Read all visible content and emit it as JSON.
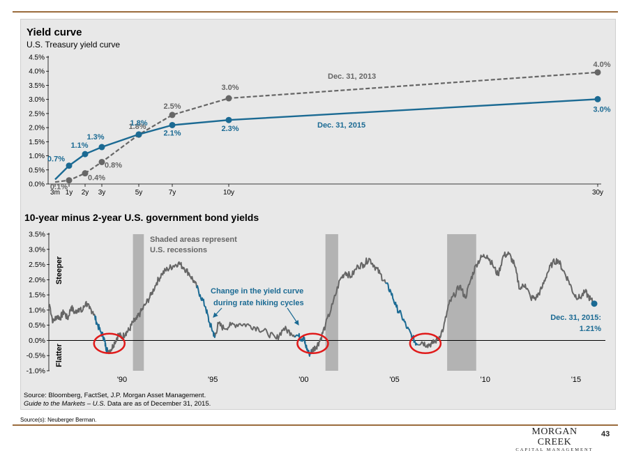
{
  "chart_data": [
    {
      "type": "line",
      "title": "Yield curve",
      "subtitle": "U.S. Treasury yield curve",
      "x_tick_labels": [
        "3m",
        "1y",
        "2y",
        "3y",
        "5y",
        "7y",
        "10y",
        "30y"
      ],
      "x_maturity_years": [
        0.25,
        1,
        2,
        3,
        5,
        7,
        10,
        30
      ],
      "ylim": [
        0,
        4.5
      ],
      "y_tick_labels": [
        "0.0%",
        "0.5%",
        "1.0%",
        "1.5%",
        "2.0%",
        "2.5%",
        "3.0%",
        "3.5%",
        "4.0%",
        "4.5%"
      ],
      "series": [
        {
          "name": "Dec. 31, 2013",
          "color": "#666666",
          "style": "dashed",
          "values": [
            0.07,
            0.13,
            0.38,
            0.78,
            1.75,
            2.45,
            3.04,
            3.96
          ],
          "point_labels": [
            {
              "x": 1,
              "text": "0.1%"
            },
            {
              "x": 2,
              "text": "0.4%"
            },
            {
              "x": 3,
              "text": "0.8%"
            },
            {
              "x": 5,
              "text": "1.8%"
            },
            {
              "x": 7,
              "text": "2.5%"
            },
            {
              "x": 10,
              "text": "3.0%"
            },
            {
              "x": 30,
              "text": "4.0%"
            }
          ]
        },
        {
          "name": "Dec. 31, 2015",
          "color": "#1b6a93",
          "style": "solid",
          "values": [
            0.16,
            0.65,
            1.06,
            1.31,
            1.76,
            2.09,
            2.27,
            3.01
          ],
          "point_labels": [
            {
              "x": 1,
              "text": "0.7%"
            },
            {
              "x": 2,
              "text": "1.1%"
            },
            {
              "x": 3,
              "text": "1.3%"
            },
            {
              "x": 5,
              "text": "1.8%"
            },
            {
              "x": 7,
              "text": "2.1%"
            },
            {
              "x": 10,
              "text": "2.3%"
            },
            {
              "x": 30,
              "text": "3.0%"
            }
          ]
        }
      ]
    },
    {
      "type": "line",
      "title": "10-year minus 2-year U.S. government bond yields",
      "ylim": [
        -1.0,
        3.5
      ],
      "y_tick_labels": [
        "-1.0%",
        "-0.5%",
        "0.0%",
        "0.5%",
        "1.0%",
        "1.5%",
        "2.0%",
        "2.5%",
        "3.0%",
        "3.5%"
      ],
      "xlim": [
        1986,
        2016.5
      ],
      "x_ticks": [
        1990,
        1995,
        2000,
        2005,
        2010,
        2015
      ],
      "x_tick_labels": [
        "'90",
        "'95",
        "'00",
        "'05",
        "'10",
        "'15"
      ],
      "axis_side_labels": {
        "top": "Steeper",
        "bottom": "Flatter"
      },
      "recessions": [
        [
          1990.6,
          1991.2
        ],
        [
          2001.2,
          2001.9
        ],
        [
          2007.9,
          2009.5
        ]
      ],
      "series": {
        "name": "10-year minus 2-year spread",
        "color": "#666666",
        "hiking_color": "#1b6a93",
        "points": [
          [
            1986.0,
            1.2
          ],
          [
            1986.2,
            0.6
          ],
          [
            1986.4,
            0.8
          ],
          [
            1986.6,
            0.75
          ],
          [
            1986.8,
            0.95
          ],
          [
            1987.0,
            0.7
          ],
          [
            1987.2,
            1.1
          ],
          [
            1987.4,
            0.9
          ],
          [
            1987.6,
            1.05
          ],
          [
            1987.8,
            0.95
          ],
          [
            1988.0,
            1.25
          ],
          [
            1988.2,
            1.05
          ],
          [
            1988.4,
            0.95
          ],
          [
            1988.6,
            0.6
          ],
          [
            1988.8,
            0.3
          ],
          [
            1989.0,
            0.1
          ],
          [
            1989.1,
            -0.2
          ],
          [
            1989.2,
            -0.35
          ],
          [
            1989.4,
            -0.3
          ],
          [
            1989.6,
            -0.05
          ],
          [
            1989.8,
            0.2
          ],
          [
            1990.0,
            0.1
          ],
          [
            1990.2,
            0.25
          ],
          [
            1990.4,
            0.35
          ],
          [
            1990.6,
            0.6
          ],
          [
            1990.8,
            0.7
          ],
          [
            1991.0,
            0.9
          ],
          [
            1991.3,
            1.2
          ],
          [
            1991.6,
            1.5
          ],
          [
            1991.9,
            1.9
          ],
          [
            1992.2,
            2.2
          ],
          [
            1992.5,
            2.35
          ],
          [
            1992.8,
            2.45
          ],
          [
            1993.1,
            2.55
          ],
          [
            1993.4,
            2.4
          ],
          [
            1993.7,
            2.2
          ],
          [
            1994.0,
            1.9
          ],
          [
            1994.3,
            1.5
          ],
          [
            1994.6,
            1.1
          ],
          [
            1994.8,
            0.6
          ],
          [
            1995.0,
            0.3
          ],
          [
            1995.1,
            0.1
          ],
          [
            1995.3,
            0.55
          ],
          [
            1995.6,
            0.4
          ],
          [
            1996.0,
            0.5
          ],
          [
            1996.5,
            0.55
          ],
          [
            1997.0,
            0.5
          ],
          [
            1997.5,
            0.4
          ],
          [
            1998.0,
            0.25
          ],
          [
            1998.5,
            0.05
          ],
          [
            1998.9,
            0.4
          ],
          [
            1999.3,
            0.25
          ],
          [
            1999.7,
            0.15
          ],
          [
            1999.9,
            0.05
          ],
          [
            2000.0,
            0.1
          ],
          [
            2000.1,
            -0.15
          ],
          [
            2000.3,
            -0.45
          ],
          [
            2000.5,
            -0.3
          ],
          [
            2000.7,
            -0.2
          ],
          [
            2000.9,
            0.0
          ],
          [
            2001.2,
            0.5
          ],
          [
            2001.6,
            1.2
          ],
          [
            2002.0,
            2.0
          ],
          [
            2002.3,
            2.25
          ],
          [
            2002.6,
            2.1
          ],
          [
            2003.0,
            2.45
          ],
          [
            2003.3,
            2.5
          ],
          [
            2003.6,
            2.7
          ],
          [
            2003.9,
            2.45
          ],
          [
            2004.2,
            2.2
          ],
          [
            2004.5,
            1.9
          ],
          [
            2004.8,
            1.6
          ],
          [
            2005.1,
            1.1
          ],
          [
            2005.4,
            0.8
          ],
          [
            2005.7,
            0.4
          ],
          [
            2006.0,
            0.1
          ],
          [
            2006.2,
            -0.1
          ],
          [
            2006.5,
            -0.05
          ],
          [
            2006.8,
            -0.15
          ],
          [
            2007.1,
            -0.1
          ],
          [
            2007.4,
            0.05
          ],
          [
            2007.7,
            0.4
          ],
          [
            2008.0,
            1.2
          ],
          [
            2008.3,
            1.5
          ],
          [
            2008.6,
            1.8
          ],
          [
            2008.9,
            1.4
          ],
          [
            2009.2,
            2.0
          ],
          [
            2009.5,
            2.5
          ],
          [
            2009.8,
            2.75
          ],
          [
            2010.1,
            2.8
          ],
          [
            2010.4,
            2.5
          ],
          [
            2010.7,
            2.15
          ],
          [
            2011.0,
            2.8
          ],
          [
            2011.3,
            2.85
          ],
          [
            2011.6,
            2.5
          ],
          [
            2011.9,
            1.7
          ],
          [
            2012.2,
            1.85
          ],
          [
            2012.5,
            1.4
          ],
          [
            2012.8,
            1.4
          ],
          [
            2013.1,
            1.7
          ],
          [
            2013.4,
            2.2
          ],
          [
            2013.7,
            2.55
          ],
          [
            2014.0,
            2.65
          ],
          [
            2014.3,
            2.3
          ],
          [
            2014.6,
            1.95
          ],
          [
            2014.9,
            1.5
          ],
          [
            2015.2,
            1.4
          ],
          [
            2015.5,
            1.6
          ],
          [
            2015.8,
            1.35
          ],
          [
            2016.0,
            1.21
          ]
        ],
        "hiking_cycles": [
          [
            1988.5,
            1989.2
          ],
          [
            1994.1,
            1995.1
          ],
          [
            1999.5,
            2000.4
          ],
          [
            2004.5,
            2006.3
          ]
        ],
        "end_point": {
          "x": 2016.0,
          "y": 1.21
        }
      },
      "annotations": [
        {
          "text": "Shaded areas represent",
          "text2": "U.S. recessions"
        },
        {
          "text": "Change in the yield curve",
          "text2": "during rate hiking cycles"
        },
        {
          "text": "Dec. 31, 2015:",
          "text2": "1.21%"
        }
      ],
      "circled_inversions": [
        1989.3,
        2000.5,
        2006.7
      ]
    }
  ],
  "chart1": {
    "title": "Yield curve",
    "subtitle": "U.S. Treasury yield curve",
    "series_label_2013": "Dec. 31, 2013",
    "series_label_2015": "Dec. 31, 2015"
  },
  "chart2": {
    "title": "10-year minus 2-year U.S. government bond yields",
    "steeper": "Steeper",
    "flatter": "Flatter",
    "recession_note_1": "Shaded areas represent",
    "recession_note_2": "U.S. recessions",
    "hiking_note_1": "Change in the yield curve",
    "hiking_note_2": "during rate hiking cycles",
    "end_label_1": "Dec. 31, 2015:",
    "end_label_2": "1.21%"
  },
  "sources": {
    "line1": "Source: Bloomberg, FactSet, J.P. Morgan Asset Management.",
    "line2_italic": "Guide to the Markets – U.S.",
    "line2_rest": " Data are as of December 31, 2015."
  },
  "footer": {
    "source_line": "Source(s):  Neuberger Berman.",
    "logo_line1": "MORGAN CREEK",
    "logo_line2": "CAPITAL MANAGEMENT",
    "page_number": "43"
  },
  "colors": {
    "accent_rule": "#9a6b3c",
    "blue": "#1b6a93",
    "grey_series": "#666666",
    "recession": "#b3b3b3",
    "circle": "#e01b1b"
  }
}
